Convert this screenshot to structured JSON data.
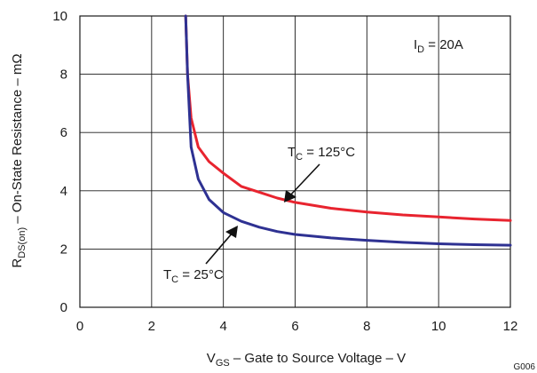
{
  "chart_data": {
    "type": "line",
    "xlabel": {
      "main": "V",
      "sub": "GS",
      "rest": " – Gate to Source Voltage – V"
    },
    "ylabel": {
      "main": "R",
      "sub": "DS(on)",
      "rest": " – On-State Resistance – mΩ"
    },
    "xlim": [
      0,
      12
    ],
    "ylim": [
      0,
      10
    ],
    "x_ticks": [
      0,
      2,
      4,
      6,
      8,
      10,
      12
    ],
    "y_ticks": [
      0,
      2,
      4,
      6,
      8,
      10
    ],
    "grid": true,
    "annotation_id": {
      "main": "I",
      "sub": "D",
      "rest": " = 20A"
    },
    "figure_id": "G006",
    "series": [
      {
        "name": {
          "main": "T",
          "sub": "C",
          "rest": " = 125°C"
        },
        "color": "#e8242f",
        "points": [
          [
            2.95,
            10.0
          ],
          [
            3.0,
            8.0
          ],
          [
            3.1,
            6.5
          ],
          [
            3.3,
            5.5
          ],
          [
            3.6,
            5.0
          ],
          [
            4.0,
            4.6
          ],
          [
            4.5,
            4.15
          ],
          [
            5.0,
            3.95
          ],
          [
            5.5,
            3.75
          ],
          [
            6.0,
            3.6
          ],
          [
            7.0,
            3.4
          ],
          [
            8.0,
            3.27
          ],
          [
            9.0,
            3.17
          ],
          [
            10.0,
            3.1
          ],
          [
            11.0,
            3.03
          ],
          [
            12.0,
            2.98
          ]
        ]
      },
      {
        "name": {
          "main": "T",
          "sub": "C",
          "rest": " = 25°C"
        },
        "color": "#2e3192",
        "points": [
          [
            2.95,
            10.0
          ],
          [
            3.0,
            8.0
          ],
          [
            3.1,
            5.5
          ],
          [
            3.3,
            4.4
          ],
          [
            3.6,
            3.7
          ],
          [
            4.0,
            3.25
          ],
          [
            4.5,
            2.95
          ],
          [
            5.0,
            2.75
          ],
          [
            5.5,
            2.6
          ],
          [
            6.0,
            2.5
          ],
          [
            7.0,
            2.38
          ],
          [
            8.0,
            2.3
          ],
          [
            9.0,
            2.23
          ],
          [
            10.0,
            2.18
          ],
          [
            11.0,
            2.15
          ],
          [
            12.0,
            2.13
          ]
        ]
      }
    ]
  }
}
